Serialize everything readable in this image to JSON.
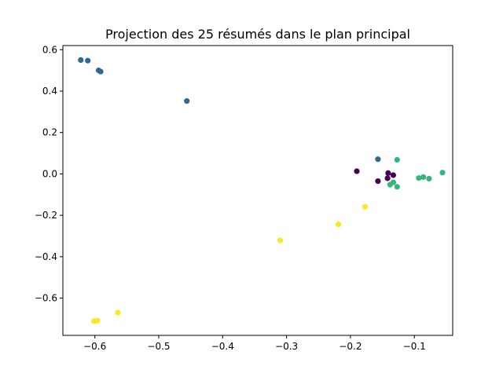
{
  "chart_data": {
    "type": "scatter",
    "title": "Projection des 25 résumés dans le plan principal",
    "xlabel": "",
    "ylabel": "",
    "xlim": [
      -0.65,
      -0.04
    ],
    "ylim": [
      -0.78,
      0.62
    ],
    "x_ticks": [
      {
        "value": -0.6,
        "label": "−0.6"
      },
      {
        "value": -0.5,
        "label": "−0.5"
      },
      {
        "value": -0.4,
        "label": "−0.4"
      },
      {
        "value": -0.3,
        "label": "−0.3"
      },
      {
        "value": -0.2,
        "label": "−0.2"
      },
      {
        "value": -0.1,
        "label": "−0.1"
      }
    ],
    "y_ticks": [
      {
        "value": 0.6,
        "label": "0.6"
      },
      {
        "value": 0.4,
        "label": "0.4"
      },
      {
        "value": 0.2,
        "label": "0.2"
      },
      {
        "value": 0.0,
        "label": "0.0"
      },
      {
        "value": -0.2,
        "label": "−0.2"
      },
      {
        "value": -0.4,
        "label": "−0.4"
      },
      {
        "value": -0.6,
        "label": "−0.6"
      }
    ],
    "grid": false,
    "series": [
      {
        "color": "#440154",
        "points": [
          {
            "x": -0.19,
            "y": 0.013
          },
          {
            "x": -0.141,
            "y": 0.004
          },
          {
            "x": -0.133,
            "y": -0.006
          },
          {
            "x": -0.142,
            "y": -0.021
          },
          {
            "x": -0.157,
            "y": -0.035
          }
        ]
      },
      {
        "color": "#31688e",
        "points": [
          {
            "x": -0.622,
            "y": 0.55
          },
          {
            "x": -0.611,
            "y": 0.547
          },
          {
            "x": -0.594,
            "y": 0.5
          },
          {
            "x": -0.591,
            "y": 0.494
          },
          {
            "x": -0.456,
            "y": 0.352
          },
          {
            "x": -0.157,
            "y": 0.071
          }
        ]
      },
      {
        "color": "#35b779",
        "points": [
          {
            "x": -0.127,
            "y": 0.068
          },
          {
            "x": -0.056,
            "y": 0.006
          },
          {
            "x": -0.086,
            "y": -0.015
          },
          {
            "x": -0.093,
            "y": -0.02
          },
          {
            "x": -0.077,
            "y": -0.023
          },
          {
            "x": -0.133,
            "y": -0.041
          },
          {
            "x": -0.138,
            "y": -0.052
          },
          {
            "x": -0.127,
            "y": -0.062
          }
        ]
      },
      {
        "color": "#fde725",
        "points": [
          {
            "x": -0.177,
            "y": -0.159
          },
          {
            "x": -0.219,
            "y": -0.244
          },
          {
            "x": -0.31,
            "y": -0.321
          },
          {
            "x": -0.564,
            "y": -0.67
          },
          {
            "x": -0.596,
            "y": -0.709
          },
          {
            "x": -0.601,
            "y": -0.711
          }
        ]
      }
    ]
  }
}
